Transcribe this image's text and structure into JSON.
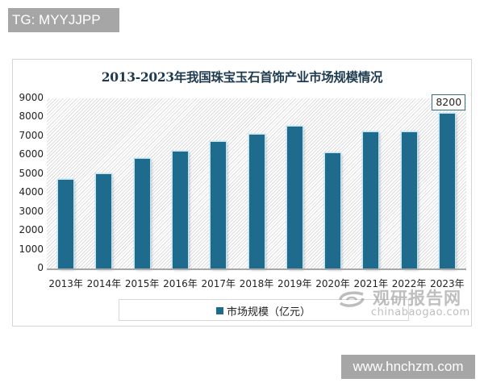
{
  "overlay": {
    "top_tag": "TG: MYYJJPP",
    "bottom_tag": "www.hnchzm.com"
  },
  "watermark": {
    "cn": "观研报告网",
    "en": "chinabaogao.com",
    "logo_icon": "swirl-logo-icon"
  },
  "chart_data": {
    "type": "bar",
    "title": "2013-2023年我国珠宝玉石首饰产业市场规模情况",
    "categories": [
      "2013年",
      "2014年",
      "2015年",
      "2016年",
      "2017年",
      "2018年",
      "2019年",
      "2020年",
      "2021年",
      "2022年",
      "2023年"
    ],
    "series": [
      {
        "name": "市场规模（亿元）",
        "values": [
          4700,
          5000,
          5800,
          6200,
          6700,
          7100,
          7500,
          6100,
          7200,
          7200,
          8200
        ],
        "color": "#1e6b8e"
      }
    ],
    "data_labels": [
      {
        "category": "2023年",
        "value": "8200"
      }
    ],
    "xlabel": "",
    "ylabel": "",
    "ylim": [
      0,
      9000
    ],
    "yticks": [
      "9000",
      "8000",
      "7000",
      "6000",
      "5000",
      "4000",
      "3000",
      "2000",
      "1000",
      "0"
    ],
    "legend_position": "bottom",
    "grid": false,
    "background": "diagonal-hatch"
  }
}
